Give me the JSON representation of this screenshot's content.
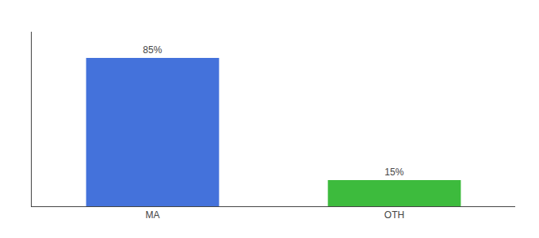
{
  "chart_data": {
    "type": "bar",
    "categories": [
      "MA",
      "OTH"
    ],
    "values": [
      85,
      15
    ],
    "value_labels": [
      "85%",
      "15%"
    ],
    "colors": [
      "#4472db",
      "#3dbb3d"
    ],
    "ylim": [
      0,
      100
    ],
    "grid": false,
    "data_labels": true,
    "tick_labels": "x"
  }
}
